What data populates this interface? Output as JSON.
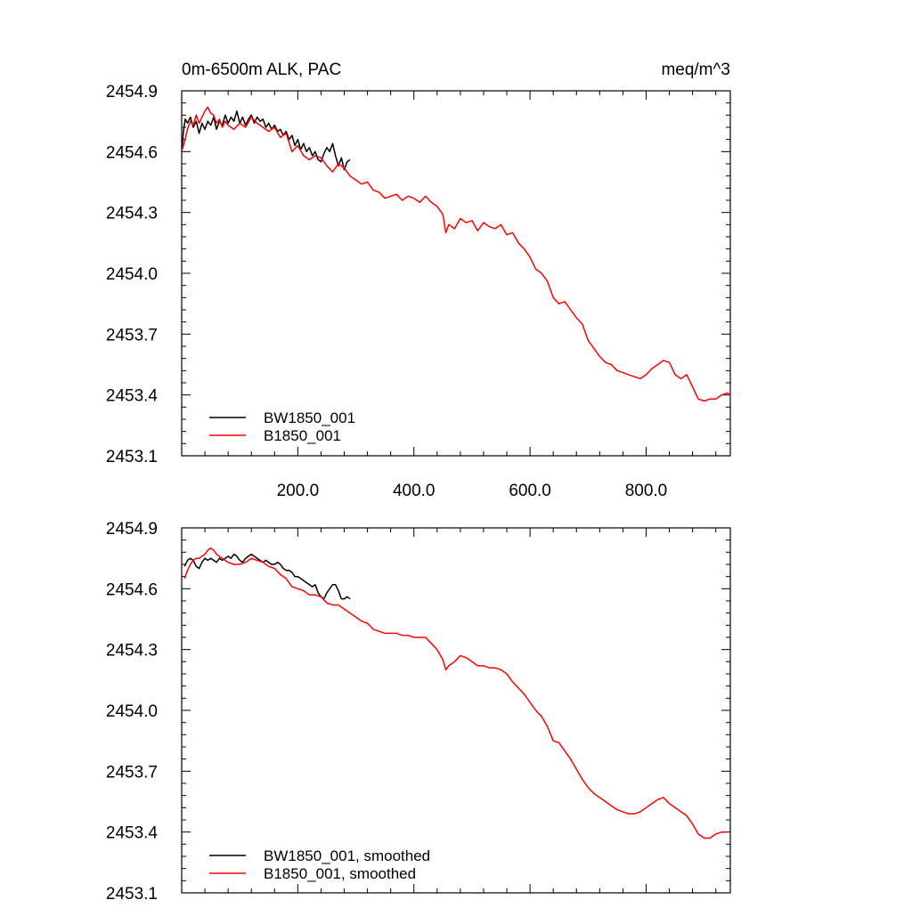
{
  "title_left": "0m-6500m ALK, PAC",
  "title_right": "meq/m^3",
  "chart_data": [
    {
      "type": "line",
      "panel": "top",
      "xlim": [
        0,
        945
      ],
      "ylim": [
        2453.1,
        2454.9
      ],
      "yticks": [
        "2454.9",
        "2454.6",
        "2454.3",
        "2454.0",
        "2453.7",
        "2453.4",
        "2453.1"
      ],
      "xticks": [
        "200.0",
        "400.0",
        "600.0",
        "800.0"
      ],
      "legend_position": "bottom-left",
      "series": [
        {
          "name": "BW1850_001",
          "color": "#000000",
          "smoothed": false,
          "x": [
            0,
            3,
            6,
            10,
            15,
            20,
            25,
            30,
            35,
            40,
            45,
            50,
            55,
            60,
            65,
            70,
            75,
            80,
            85,
            90,
            95,
            100,
            105,
            110,
            115,
            120,
            125,
            130,
            135,
            140,
            145,
            150,
            155,
            160,
            165,
            170,
            175,
            180,
            185,
            190,
            195,
            200,
            205,
            210,
            215,
            220,
            225,
            230,
            235,
            240,
            245,
            250,
            255,
            260,
            265,
            270,
            275,
            280,
            285,
            290
          ],
          "y": [
            2454.6,
            2454.7,
            2454.76,
            2454.74,
            2454.77,
            2454.72,
            2454.75,
            2454.69,
            2454.74,
            2454.71,
            2454.75,
            2454.73,
            2454.77,
            2454.71,
            2454.75,
            2454.73,
            2454.78,
            2454.74,
            2454.77,
            2454.75,
            2454.8,
            2454.74,
            2454.77,
            2454.73,
            2454.76,
            2454.78,
            2454.74,
            2454.77,
            2454.75,
            2454.76,
            2454.72,
            2454.74,
            2454.71,
            2454.73,
            2454.7,
            2454.71,
            2454.68,
            2454.7,
            2454.66,
            2454.68,
            2454.63,
            2454.66,
            2454.61,
            2454.64,
            2454.6,
            2454.62,
            2454.58,
            2454.6,
            2454.56,
            2454.55,
            2454.59,
            2454.62,
            2454.6,
            2454.64,
            2454.58,
            2454.53,
            2454.57,
            2454.51,
            2454.55,
            2454.56
          ]
        },
        {
          "name": "B1850_001",
          "color": "#ff0000",
          "smoothed": false,
          "x": [
            0,
            5,
            10,
            15,
            20,
            25,
            30,
            35,
            40,
            45,
            50,
            55,
            60,
            65,
            70,
            75,
            80,
            90,
            100,
            110,
            120,
            130,
            140,
            150,
            160,
            170,
            180,
            190,
            200,
            210,
            220,
            230,
            240,
            250,
            260,
            270,
            280,
            290,
            300,
            310,
            320,
            330,
            340,
            350,
            360,
            370,
            380,
            390,
            400,
            410,
            420,
            430,
            440,
            450,
            455,
            460,
            470,
            480,
            490,
            500,
            510,
            520,
            530,
            540,
            550,
            560,
            570,
            580,
            590,
            600,
            610,
            620,
            630,
            640,
            650,
            660,
            670,
            680,
            690,
            700,
            710,
            720,
            730,
            740,
            750,
            760,
            770,
            780,
            790,
            800,
            810,
            820,
            830,
            840,
            850,
            860,
            870,
            880,
            890,
            900,
            910,
            920,
            930,
            940,
            945
          ],
          "y": [
            2454.6,
            2454.65,
            2454.71,
            2454.75,
            2454.73,
            2454.78,
            2454.74,
            2454.77,
            2454.8,
            2454.82,
            2454.79,
            2454.78,
            2454.74,
            2454.76,
            2454.72,
            2454.75,
            2454.73,
            2454.71,
            2454.74,
            2454.72,
            2454.77,
            2454.74,
            2454.72,
            2454.7,
            2454.72,
            2454.67,
            2454.69,
            2454.6,
            2454.63,
            2454.58,
            2454.56,
            2454.58,
            2454.57,
            2454.53,
            2454.5,
            2454.54,
            2454.52,
            2454.48,
            2454.46,
            2454.44,
            2454.45,
            2454.41,
            2454.4,
            2454.37,
            2454.38,
            2454.39,
            2454.36,
            2454.38,
            2454.37,
            2454.35,
            2454.38,
            2454.35,
            2454.33,
            2454.29,
            2454.2,
            2454.24,
            2454.22,
            2454.27,
            2454.25,
            2454.26,
            2454.21,
            2454.25,
            2454.23,
            2454.22,
            2454.24,
            2454.19,
            2454.2,
            2454.15,
            2454.12,
            2454.08,
            2454.02,
            2454.0,
            2453.96,
            2453.88,
            2453.85,
            2453.86,
            2453.82,
            2453.78,
            2453.75,
            2453.67,
            2453.63,
            2453.59,
            2453.56,
            2453.55,
            2453.52,
            2453.51,
            2453.5,
            2453.49,
            2453.48,
            2453.5,
            2453.53,
            2453.55,
            2453.57,
            2453.56,
            2453.5,
            2453.48,
            2453.5,
            2453.44,
            2453.38,
            2453.37,
            2453.38,
            2453.38,
            2453.4,
            2453.41,
            2453.4
          ]
        }
      ]
    },
    {
      "type": "line",
      "panel": "bottom",
      "xlim": [
        0,
        945
      ],
      "ylim": [
        2453.1,
        2454.9
      ],
      "yticks": [
        "2454.9",
        "2454.6",
        "2454.3",
        "2454.0",
        "2453.7",
        "2453.4",
        "2453.1"
      ],
      "xticks": [],
      "legend_position": "bottom-left",
      "series": [
        {
          "name": "BW1850_001, smoothed",
          "color": "#000000",
          "smoothed": true,
          "x": [
            5,
            10,
            15,
            20,
            25,
            30,
            35,
            40,
            45,
            50,
            55,
            60,
            65,
            70,
            75,
            80,
            85,
            90,
            95,
            100,
            105,
            110,
            115,
            120,
            125,
            130,
            135,
            140,
            145,
            150,
            155,
            160,
            165,
            170,
            175,
            180,
            185,
            190,
            195,
            200,
            205,
            210,
            215,
            220,
            225,
            230,
            235,
            240,
            245,
            250,
            255,
            260,
            265,
            270,
            275,
            280,
            285,
            290
          ],
          "y": [
            2454.71,
            2454.74,
            2454.75,
            2454.74,
            2454.71,
            2454.7,
            2454.73,
            2454.75,
            2454.74,
            2454.75,
            2454.74,
            2454.73,
            2454.75,
            2454.74,
            2454.75,
            2454.76,
            2454.75,
            2454.77,
            2454.76,
            2454.74,
            2454.73,
            2454.75,
            2454.76,
            2454.77,
            2454.76,
            2454.75,
            2454.74,
            2454.73,
            2454.74,
            2454.73,
            2454.72,
            2454.72,
            2454.73,
            2454.72,
            2454.7,
            2454.69,
            2454.69,
            2454.68,
            2454.66,
            2454.66,
            2454.65,
            2454.64,
            2454.63,
            2454.62,
            2454.61,
            2454.62,
            2454.58,
            2454.56,
            2454.55,
            2454.58,
            2454.6,
            2454.62,
            2454.62,
            2454.59,
            2454.55,
            2454.55,
            2454.56,
            2454.55
          ]
        },
        {
          "name": "B1850_001, smoothed",
          "color": "#ff0000",
          "smoothed": true,
          "x": [
            5,
            10,
            15,
            20,
            25,
            30,
            35,
            40,
            45,
            50,
            55,
            60,
            70,
            80,
            90,
            100,
            110,
            120,
            130,
            140,
            150,
            160,
            170,
            180,
            190,
            200,
            210,
            220,
            230,
            240,
            250,
            260,
            270,
            280,
            290,
            300,
            310,
            320,
            330,
            340,
            350,
            360,
            370,
            380,
            390,
            400,
            410,
            420,
            430,
            440,
            450,
            455,
            460,
            470,
            480,
            490,
            500,
            510,
            520,
            530,
            540,
            550,
            560,
            570,
            580,
            590,
            600,
            610,
            620,
            630,
            640,
            650,
            660,
            670,
            680,
            690,
            700,
            710,
            720,
            730,
            740,
            750,
            760,
            770,
            780,
            790,
            800,
            810,
            820,
            830,
            840,
            850,
            860,
            870,
            880,
            890,
            900,
            910,
            920,
            930,
            940
          ],
          "y": [
            2454.65,
            2454.69,
            2454.72,
            2454.74,
            2454.75,
            2454.75,
            2454.76,
            2454.77,
            2454.79,
            2454.8,
            2454.79,
            2454.77,
            2454.75,
            2454.73,
            2454.72,
            2454.72,
            2454.73,
            2454.75,
            2454.74,
            2454.73,
            2454.71,
            2454.7,
            2454.67,
            2454.65,
            2454.61,
            2454.6,
            2454.59,
            2454.57,
            2454.57,
            2454.56,
            2454.53,
            2454.52,
            2454.52,
            2454.5,
            2454.48,
            2454.46,
            2454.44,
            2454.43,
            2454.4,
            2454.39,
            2454.38,
            2454.38,
            2454.38,
            2454.37,
            2454.37,
            2454.36,
            2454.36,
            2454.36,
            2454.33,
            2454.3,
            2454.25,
            2454.2,
            2454.22,
            2454.24,
            2454.27,
            2454.26,
            2454.24,
            2454.22,
            2454.22,
            2454.21,
            2454.21,
            2454.2,
            2454.18,
            2454.14,
            2454.11,
            2454.08,
            2454.04,
            2454.0,
            2453.97,
            2453.92,
            2453.85,
            2453.84,
            2453.8,
            2453.76,
            2453.71,
            2453.66,
            2453.62,
            2453.59,
            2453.57,
            2453.55,
            2453.53,
            2453.51,
            2453.5,
            2453.49,
            2453.49,
            2453.5,
            2453.52,
            2453.54,
            2453.56,
            2453.57,
            2453.54,
            2453.52,
            2453.5,
            2453.48,
            2453.44,
            2453.39,
            2453.37,
            2453.37,
            2453.39,
            2453.4,
            2453.4
          ]
        }
      ]
    }
  ]
}
